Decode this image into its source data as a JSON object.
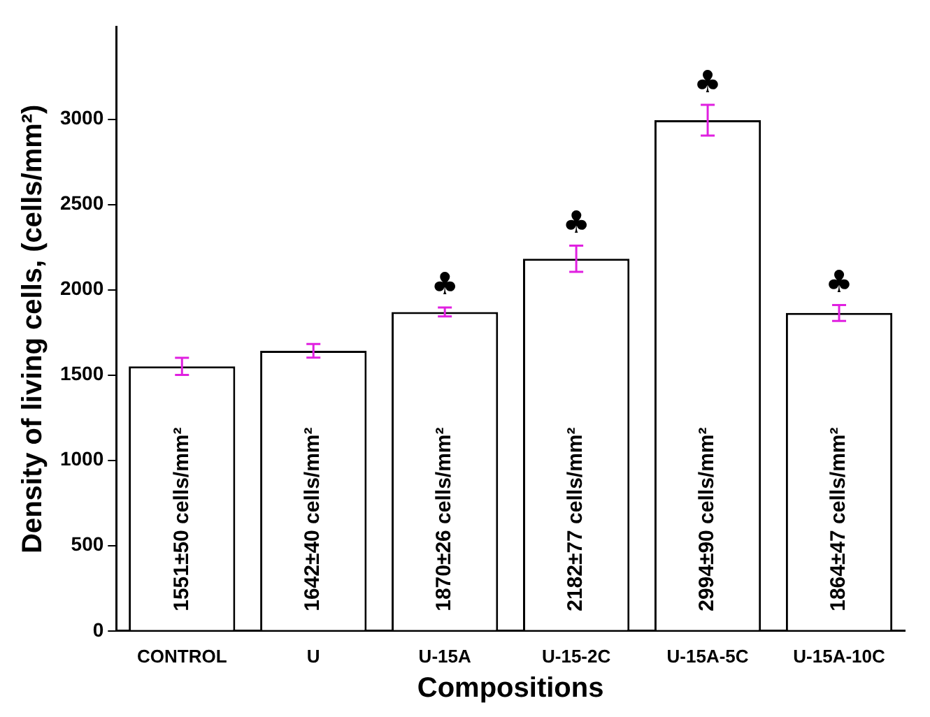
{
  "chart_data": {
    "type": "bar",
    "xlabel": "Compositions",
    "ylabel": "Density of living cells, (cells/mm²)",
    "categories": [
      "CONTROL",
      "U",
      "U-15A",
      "U-15-2C",
      "U-15A-5C",
      "U-15A-10C"
    ],
    "series": [
      {
        "color": "#ffffff",
        "values": [
          1551,
          1642,
          1870,
          2182,
          2994,
          1864
        ],
        "errors": [
          50,
          40,
          26,
          77,
          90,
          47
        ],
        "value_labels": [
          "1551±50 cells/mm²",
          "1642±40 cells/mm²",
          "1870±26 cells/mm²",
          "2182±77 cells/mm²",
          "2994±90 cells/mm²",
          "1864±47 cells/mm²"
        ]
      }
    ],
    "ylim": [
      0,
      3540
    ],
    "yticks": [
      0,
      500,
      1000,
      1500,
      2000,
      2500,
      3000
    ],
    "grid": false,
    "legend": false,
    "annotations": [
      {
        "text": "♣",
        "x": "U-15A",
        "y": 1896
      },
      {
        "text": "♣",
        "x": "U-15-2C",
        "y": 2259
      },
      {
        "text": "♣",
        "x": "U-15A-5C",
        "y": 3084
      },
      {
        "text": "♣",
        "x": "U-15A-10C",
        "y": 1911
      }
    ]
  }
}
